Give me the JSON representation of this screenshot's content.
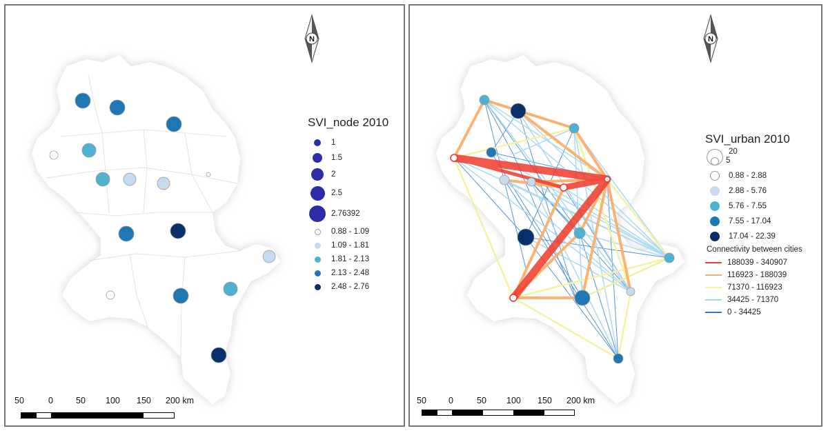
{
  "left_map": {
    "legend_title": "SVI_node 2010",
    "size_legend": [
      {
        "label": "1"
      },
      {
        "label": "1.5"
      },
      {
        "label": "2"
      },
      {
        "label": "2.5"
      },
      {
        "label": "2.76392"
      }
    ],
    "color_legend": [
      {
        "label": "0.88 - 1.09",
        "color": "#ffffff"
      },
      {
        "label": "1.09 - 1.81",
        "color": "#c6dbef"
      },
      {
        "label": "1.81 - 2.13",
        "color": "#4eb3d3"
      },
      {
        "label": "2.13 - 2.48",
        "color": "#1f78b4"
      },
      {
        "label": "2.48 - 2.76",
        "color": "#08306b"
      }
    ],
    "size_legend_color": "#2c2ca8",
    "scale_labels": [
      "50",
      "0",
      "50",
      "100",
      "150",
      "200 km"
    ],
    "north_arrow_label": "N"
  },
  "right_map": {
    "legend_title": "SVI_urban 2010",
    "size_legend": [
      "20",
      "5"
    ],
    "color_legend": [
      {
        "label": "0.88 - 2.88",
        "color": "#ffffff"
      },
      {
        "label": "2.88 - 5.76",
        "color": "#c6dbef"
      },
      {
        "label": "5.76 - 7.55",
        "color": "#4eb3d3"
      },
      {
        "label": "7.55 - 17.04",
        "color": "#1f78b4"
      },
      {
        "label": "17.04 - 22.39",
        "color": "#08306b"
      }
    ],
    "connectivity_title": "Connectivity between cities",
    "connectivity_legend": [
      {
        "label": "188039 - 340907",
        "color": "#ef3b2c"
      },
      {
        "label": "116923 - 188039",
        "color": "#fdae6b"
      },
      {
        "label": "71370 - 116923",
        "color": "#f5f2a0"
      },
      {
        "label": "34425 - 71370",
        "color": "#a6d8f0"
      },
      {
        "label": "0 - 34425",
        "color": "#2b7bc7"
      }
    ],
    "scale_labels": [
      "50",
      "0",
      "50",
      "100",
      "150",
      "200 km"
    ],
    "north_arrow_label": "N"
  },
  "colors": {
    "region_fill": "#ffffff",
    "region_shadow": "#dcdcdc",
    "panel_border": "#777777"
  }
}
